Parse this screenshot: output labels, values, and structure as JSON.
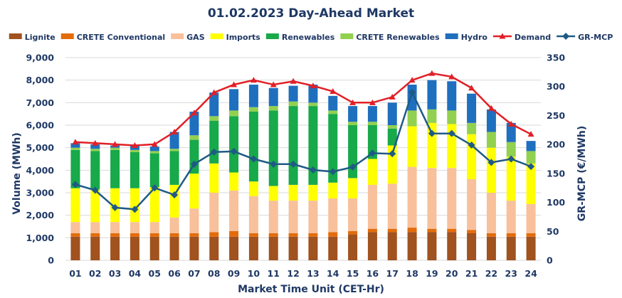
{
  "chart_data": {
    "type": "bar",
    "title": "01.02.2023  Day-Ahead Market",
    "xlabel": "Market Time Unit (CET-Hr)",
    "ylabel": "Volume (MWh)",
    "y2label": "GR-MCP (€/MWh)",
    "ylim": [
      0,
      9000
    ],
    "y2lim": [
      0,
      350
    ],
    "yticks": [
      "0",
      "1,000",
      "2,000",
      "3,000",
      "4,000",
      "5,000",
      "6,000",
      "7,000",
      "8,000",
      "9,000"
    ],
    "y2ticks": [
      "0",
      "50",
      "100",
      "150",
      "200",
      "250",
      "300",
      "350"
    ],
    "grid": true,
    "legend_position": "top",
    "categories": [
      "01",
      "02",
      "03",
      "04",
      "05",
      "06",
      "07",
      "08",
      "09",
      "10",
      "11",
      "12",
      "13",
      "14",
      "15",
      "16",
      "17",
      "18",
      "19",
      "20",
      "21",
      "22",
      "23",
      "24"
    ],
    "series": [
      {
        "name": "Lignite",
        "kind": "stacked-bar",
        "color": "#a0521f",
        "values": [
          1050,
          1050,
          1050,
          1050,
          1050,
          1050,
          1050,
          1050,
          1050,
          1050,
          1050,
          1050,
          1050,
          1050,
          1150,
          1250,
          1250,
          1250,
          1250,
          1250,
          1200,
          1050,
          1050,
          1050
        ]
      },
      {
        "name": "CRETE Conventional",
        "kind": "stacked-bar",
        "color": "#e36c0a",
        "values": [
          150,
          150,
          150,
          150,
          150,
          150,
          150,
          200,
          250,
          150,
          150,
          150,
          150,
          200,
          150,
          150,
          150,
          200,
          150,
          150,
          150,
          150,
          150,
          150
        ]
      },
      {
        "name": "GAS",
        "kind": "stacked-bar",
        "color": "#f8c09b",
        "values": [
          500,
          500,
          500,
          500,
          500,
          700,
          1100,
          1750,
          1800,
          1650,
          1450,
          1450,
          1450,
          1500,
          1450,
          1950,
          2000,
          2700,
          2700,
          2700,
          2250,
          1800,
          1450,
          1300
        ]
      },
      {
        "name": "Imports",
        "kind": "stacked-bar",
        "color": "#ffff00",
        "values": [
          1500,
          1450,
          1500,
          1500,
          1550,
          1450,
          1550,
          1300,
          800,
          650,
          650,
          700,
          700,
          700,
          900,
          1150,
          1700,
          1800,
          2000,
          1950,
          2000,
          2000,
          1950,
          1800
        ]
      },
      {
        "name": "Renewables",
        "kind": "stacked-bar",
        "color": "#17a94a",
        "values": [
          1700,
          1700,
          1700,
          1600,
          1500,
          1500,
          1500,
          1900,
          2500,
          3100,
          3350,
          3500,
          3500,
          3050,
          2350,
          1500,
          750,
          0,
          0,
          0,
          0,
          0,
          0,
          0
        ]
      },
      {
        "name": "CRETE Renewables",
        "kind": "stacked-bar",
        "color": "#92d050",
        "values": [
          100,
          100,
          100,
          100,
          100,
          100,
          200,
          200,
          250,
          200,
          200,
          200,
          150,
          150,
          150,
          150,
          150,
          700,
          600,
          600,
          500,
          700,
          650,
          550
        ]
      },
      {
        "name": "Hydro",
        "kind": "stacked-bar",
        "color": "#1f6fbf",
        "values": [
          200,
          200,
          100,
          200,
          200,
          750,
          1050,
          1050,
          950,
          1000,
          800,
          700,
          800,
          650,
          700,
          700,
          1000,
          1150,
          1300,
          1300,
          1300,
          1000,
          850,
          450
        ]
      },
      {
        "name": "Demand",
        "kind": "line",
        "color": "#e21f26",
        "marker": "triangle",
        "values": [
          5250,
          5200,
          5150,
          5100,
          5150,
          5700,
          6550,
          7450,
          7800,
          8000,
          7800,
          7950,
          7750,
          7500,
          7000,
          7000,
          7250,
          8000,
          8300,
          8150,
          7650,
          6750,
          6050,
          5600
        ]
      },
      {
        "name": "GR-MCP",
        "kind": "line",
        "axis": "secondary",
        "color": "#1f5a85",
        "marker": "diamond",
        "values": [
          131,
          121,
          91,
          88,
          125,
          113,
          166,
          187,
          188,
          175,
          166,
          166,
          156,
          153,
          161,
          185,
          184,
          290,
          219,
          219,
          199,
          169,
          175,
          162
        ]
      }
    ]
  }
}
